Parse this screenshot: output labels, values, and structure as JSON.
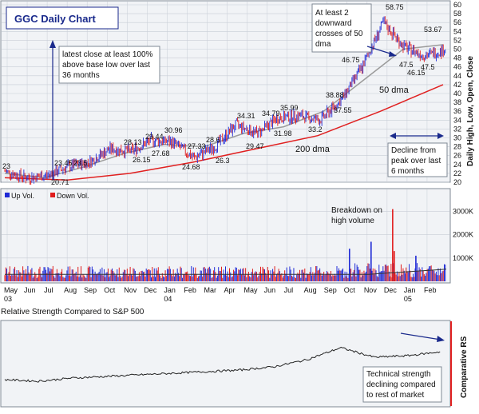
{
  "colors": {
    "panel_bg": "#f1f3f6",
    "grid": "#c8cdd6",
    "frame": "#7f8894",
    "up": "#1f2ad6",
    "down": "#e01c1c",
    "ma50": "#9b9b9b",
    "ma200": "#e02020",
    "rs_line": "#222222",
    "annot": "#1a2a8c",
    "title_box_text": "#1a2a8c",
    "label_text": "#111111"
  },
  "header": {
    "title": "GGC Daily Chart"
  },
  "price_panel": {
    "ylabel": "Daily High, Low, Open, Close",
    "y_ticks": [
      "20",
      "22",
      "24",
      "26",
      "28",
      "30",
      "32",
      "34",
      "36",
      "38",
      "40",
      "42",
      "44",
      "46",
      "48",
      "50",
      "52",
      "54",
      "56",
      "58",
      "60"
    ],
    "label_23": "23",
    "label_207": "20.71",
    "label_2345": "23.45",
    "label_235": "23.5",
    "label_2813": "28.13",
    "label_2615": "26.15",
    "label_2944": "29.44",
    "label_2768": "27.68",
    "label_3096": "30.96",
    "label_2733": "27.33",
    "label_2468": "24.68",
    "label_286": "28.6",
    "label_263": "26.3",
    "label_3431": "34.31",
    "label_2947": "29.47",
    "label_3479": "34.79",
    "label_3198": "31.98",
    "label_3599": "35.99",
    "label_332": "33.2",
    "label_3888": "38.88",
    "label_3755": "37.55",
    "label_4675": "46.75",
    "label_5875": "58.75",
    "label_5367": "53.67",
    "label_475a": "47.5",
    "label_4615": "46.15",
    "label_475b": "47.5",
    "ma50_label": "50 dma",
    "ma200_label": "200 dma"
  },
  "annotations": {
    "base_note": [
      "latest close at least 100%",
      "above base low over last",
      "36 months"
    ],
    "cross_note": [
      "At least 2",
      "downward",
      "crosses of 50",
      "dma"
    ],
    "decline_note": [
      "Decline from",
      "peak over last",
      "6 months"
    ],
    "breakdown_note": [
      "Breakdown on",
      "high volume"
    ],
    "rs_note": [
      "Technical strength",
      "declining compared",
      "to rest of market"
    ]
  },
  "volume_panel": {
    "legend_up": "Up Vol.",
    "legend_down": "Down Vol.",
    "y_ticks": [
      "1000K",
      "2000K",
      "3000K"
    ]
  },
  "x_axis": {
    "months": [
      "May",
      "Jun",
      "Jul",
      "Aug",
      "Sep",
      "Oct",
      "Nov",
      "Dec",
      "Jan",
      "Feb",
      "Mar",
      "Apr",
      "May",
      "Jun",
      "Jul",
      "Aug",
      "Sep",
      "Oct",
      "Nov",
      "Dec",
      "Jan",
      "Feb"
    ],
    "year_labels": [
      {
        "text": "03",
        "under": "May"
      },
      {
        "text": "04",
        "under": "Jan"
      },
      {
        "text": "05",
        "under": "Jan"
      }
    ]
  },
  "rs_panel": {
    "title": "Relative Strength Compared to S&P 500",
    "ylabel": "Comparative RS"
  },
  "chart_data": {
    "type": "line",
    "ylim": [
      20,
      60
    ],
    "series": [
      {
        "name": "50 dma",
        "x": [
          "May 2003",
          "Jul 2003",
          "Sep 2003",
          "Nov 2003",
          "Jan 2004",
          "Mar 2004",
          "May 2004",
          "Jul 2004",
          "Sep 2004",
          "Nov 2004",
          "Dec 2004",
          "Feb 2005"
        ],
        "values": [
          22.0,
          21.0,
          23.5,
          26.5,
          28.5,
          28.0,
          31.0,
          32.5,
          36.0,
          43.0,
          50.0,
          51.0
        ]
      },
      {
        "name": "200 dma",
        "x": [
          "May 2003",
          "Aug 2003",
          "Nov 2003",
          "Feb 2004",
          "May 2004",
          "Aug 2004",
          "Nov 2004",
          "Feb 2005"
        ],
        "values": [
          21.0,
          20.5,
          22.0,
          24.5,
          27.5,
          30.5,
          36.0,
          42.0
        ]
      }
    ],
    "price_path": {
      "x": [
        "May 2003",
        "Jun 2003",
        "Jul 2003",
        "Aug 2003",
        "Sep 2003",
        "Oct 2003",
        "Nov 2003",
        "Dec 2003",
        "Jan 2004",
        "Feb 2004",
        "Mar 2004",
        "Apr 2004",
        "May 2004",
        "Jun 2004",
        "Jul 2004",
        "Aug 2004",
        "Sep 2004",
        "Oct 2004",
        "Nov 2004",
        "Dec 2004",
        "Jan 2005",
        "Feb 2005"
      ],
      "close": [
        22.5,
        21.0,
        21.5,
        23.5,
        24.5,
        27.5,
        27.0,
        29.5,
        29.0,
        25.5,
        28.0,
        33.0,
        31.0,
        34.5,
        35.0,
        34.0,
        38.5,
        46.0,
        56.0,
        50.5,
        48.5,
        50.0
      ]
    },
    "volume": {
      "ylim": [
        0,
        3500
      ],
      "unit": "K",
      "base_level": 400,
      "spikes": [
        {
          "x": "Oct 2004",
          "value": 1400
        },
        {
          "x": "Nov 2004",
          "value": 1700
        },
        {
          "x": "Dec 2004",
          "value": 3100
        },
        {
          "x": "Dec 2004",
          "value": 1300
        },
        {
          "x": "Jan 2005",
          "value": 1100
        }
      ]
    },
    "rs_path": {
      "x": [
        "May 2003",
        "Jul 2003",
        "Sep 2003",
        "Nov 2003",
        "Jan 2004",
        "Mar 2004",
        "May 2004",
        "Jul 2004",
        "Sep 2004",
        "Oct 2004",
        "Nov 2004",
        "Dec 2004",
        "Jan 2005",
        "Feb 2005"
      ],
      "values": [
        30,
        28,
        32,
        34,
        36,
        38,
        40,
        42,
        46,
        55,
        70,
        58,
        60,
        65
      ]
    }
  }
}
